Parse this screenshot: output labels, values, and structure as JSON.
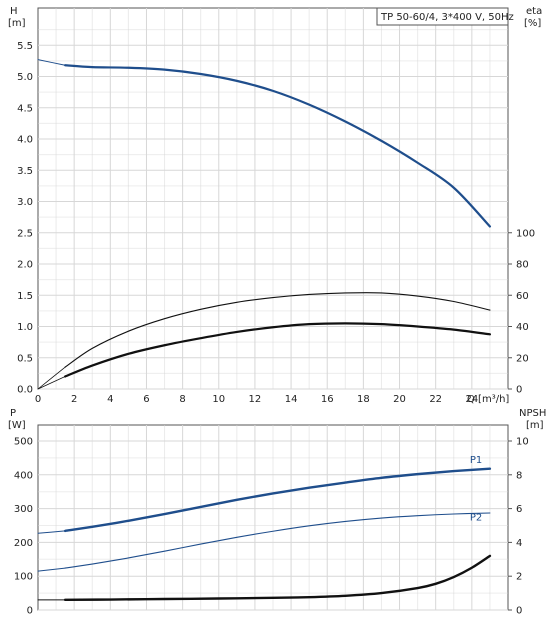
{
  "chart_data": [
    {
      "type": "line",
      "title": "TP 50-60/4, 3*400 V, 50Hz",
      "xlabel": "Q [m³/h]",
      "x_unit_label": "Q [m³/h]",
      "x_ticks": [
        "0",
        "2",
        "4",
        "6",
        "8",
        "10",
        "12",
        "14",
        "16",
        "18",
        "20",
        "22",
        "24"
      ],
      "xlim": [
        0,
        26
      ],
      "left_axis": {
        "label_line1": "H",
        "label_line2": "[m]",
        "ticks": [
          "0.0",
          "0.5",
          "1.0",
          "1.5",
          "2.0",
          "2.5",
          "3.0",
          "3.5",
          "4.0",
          "4.5",
          "5.0",
          "5.5"
        ],
        "ylim": [
          0,
          6.0
        ]
      },
      "right_axis": {
        "label_line1": "eta",
        "label_line2": "[%]",
        "ticks": [
          "0",
          "20",
          "40",
          "60",
          "80",
          "100"
        ],
        "ylim": [
          0,
          100
        ]
      },
      "grid": true,
      "series": [
        {
          "axis": "left",
          "color": "#1f4e8c",
          "width": 2.2,
          "x": [
            1.5,
            3,
            5,
            7,
            9,
            11,
            13,
            15,
            17,
            19,
            21,
            23,
            25
          ],
          "y": [
            5.18,
            5.15,
            5.14,
            5.11,
            5.04,
            4.93,
            4.77,
            4.55,
            4.28,
            3.97,
            3.62,
            3.22,
            2.6
          ]
        },
        {
          "axis": "left",
          "color": "#1f4e8c",
          "width": 1,
          "x": [
            0,
            1.5
          ],
          "y": [
            5.27,
            5.18
          ]
        },
        {
          "axis": "right",
          "color": "#111111",
          "width": 1.1,
          "x": [
            1.5,
            3,
            5,
            7,
            9,
            11,
            13,
            15,
            17,
            19,
            21,
            23,
            25
          ],
          "y": [
            14,
            26,
            37,
            45,
            51,
            55.5,
            58.5,
            60.5,
            61.5,
            61.5,
            59.5,
            56,
            50.5
          ]
        },
        {
          "axis": "right",
          "color": "#111111",
          "width": 0.8,
          "x": [
            0,
            1.5
          ],
          "y": [
            0,
            14
          ]
        },
        {
          "axis": "right",
          "color": "#111111",
          "width": 2.2,
          "x": [
            1.5,
            3,
            5,
            7,
            9,
            11,
            13,
            15,
            17,
            19,
            21,
            23,
            25
          ],
          "y": [
            8,
            15,
            22.5,
            28,
            32.5,
            36.5,
            39.5,
            41.5,
            42,
            41.5,
            40,
            38,
            35
          ]
        },
        {
          "axis": "right",
          "color": "#111111",
          "width": 0.8,
          "x": [
            0,
            1.5
          ],
          "y": [
            0,
            8
          ]
        }
      ]
    },
    {
      "type": "line",
      "xlim": [
        0,
        26
      ],
      "left_axis": {
        "label_line1": "P",
        "label_line2": "[W]",
        "ticks": [
          "0",
          "100",
          "200",
          "300",
          "400",
          "500"
        ],
        "ylim": [
          0,
          500
        ]
      },
      "right_axis": {
        "label_line1": "NPSH",
        "label_line2": "[m]",
        "ticks": [
          "0",
          "2",
          "4",
          "6",
          "8",
          "10"
        ],
        "ylim": [
          0,
          10
        ]
      },
      "grid": true,
      "series": [
        {
          "name": "P1",
          "axis": "left",
          "color": "#1f4e8c",
          "width": 2.4,
          "x": [
            1.5,
            3,
            5,
            7,
            9,
            11,
            13,
            15,
            17,
            19,
            21,
            23,
            25
          ],
          "y": [
            234,
            246,
            264,
            284,
            305,
            326,
            345,
            362,
            377,
            391,
            402,
            411,
            418
          ]
        },
        {
          "axis": "left",
          "color": "#1f4e8c",
          "width": 1,
          "x": [
            0,
            1.5
          ],
          "y": [
            227,
            234
          ]
        },
        {
          "name": "P2",
          "axis": "left",
          "color": "#1f4e8c",
          "width": 1.1,
          "x": [
            1.5,
            3,
            5,
            7,
            9,
            11,
            13,
            15,
            17,
            19,
            21,
            23,
            25
          ],
          "y": [
            124,
            136,
            154,
            174,
            195,
            215,
            233,
            249,
            262,
            272,
            279,
            284,
            287
          ]
        },
        {
          "axis": "left",
          "color": "#1f4e8c",
          "width": 1,
          "x": [
            0,
            1.5
          ],
          "y": [
            115,
            124
          ]
        },
        {
          "axis": "right",
          "color": "#111111",
          "width": 2.4,
          "x": [
            1.5,
            4,
            7,
            10,
            13,
            15,
            17,
            19,
            21,
            22,
            23,
            24,
            25
          ],
          "y": [
            0.6,
            0.62,
            0.65,
            0.68,
            0.72,
            0.76,
            0.84,
            1.0,
            1.3,
            1.55,
            1.95,
            2.5,
            3.2
          ]
        },
        {
          "axis": "right",
          "color": "#111111",
          "width": 1,
          "x": [
            0,
            1.5
          ],
          "y": [
            0.6,
            0.6
          ]
        }
      ],
      "labels": [
        {
          "text": "P1",
          "x": 24,
          "y": 435,
          "axis": "left",
          "color": "#1f4e8c"
        },
        {
          "text": "P2",
          "x": 24,
          "y": 265,
          "axis": "left",
          "color": "#1f4e8c"
        }
      ]
    }
  ]
}
